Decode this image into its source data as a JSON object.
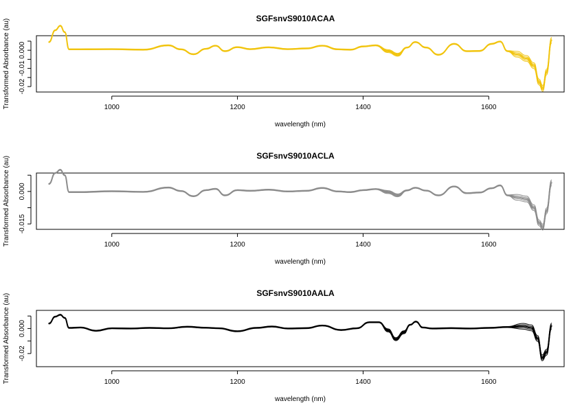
{
  "chart_data": [
    {
      "type": "line",
      "title": "SGFsnvS9010ACAA",
      "xlabel": "wavelength (nm)",
      "ylabel": "Transformed Absorbance (au)",
      "xlim": [
        880,
        1720
      ],
      "ylim": [
        -0.023,
        0.008
      ],
      "xticks": [
        1000,
        1200,
        1400,
        1600
      ],
      "yticks": [
        -0.02,
        -0.01,
        0.0
      ],
      "color": "#f1c40f",
      "grid": false,
      "series": [
        {
          "x": [
            900,
            910,
            918,
            925,
            932,
            950,
            1000,
            1050,
            1090,
            1110,
            1130,
            1150,
            1165,
            1180,
            1200,
            1220,
            1250,
            1280,
            1310,
            1335,
            1360,
            1380,
            1400,
            1420,
            1440,
            1455,
            1470,
            1483,
            1500,
            1520,
            1545,
            1565,
            1585,
            1605,
            1618,
            1630,
            1645,
            1660,
            1672,
            1680,
            1686,
            1692,
            1700
          ],
          "y": [
            0.0045,
            0.011,
            0.0135,
            0.01,
            0.0005,
            0.0005,
            0.0006,
            0.0003,
            0.0027,
            0.0005,
            -0.0022,
            0.0008,
            0.0025,
            -0.0005,
            0.0017,
            0.0006,
            0.0016,
            0.0006,
            0.001,
            0.0025,
            0.0005,
            0.0003,
            0.0021,
            0.0027,
            -0.0005,
            -0.0025,
            0.0015,
            0.0045,
            0.0015,
            -0.0025,
            0.0035,
            -0.0005,
            -0.0004,
            0.0035,
            0.0048,
            -0.0005,
            -0.0022,
            -0.0045,
            -0.0085,
            -0.0175,
            -0.021,
            -0.012,
            0.0055
          ]
        }
      ]
    },
    {
      "type": "line",
      "title": "SGFsnvS9010ACLA",
      "xlabel": "wavelength (nm)",
      "ylabel": "Transformed Absorbance (au)",
      "xlim": [
        880,
        1720
      ],
      "ylim": [
        -0.0175,
        0.0085
      ],
      "xticks": [
        1000,
        1200,
        1400,
        1600
      ],
      "yticks": [
        -0.015,
        0.0
      ],
      "color": "#8c8c8c",
      "grid": false,
      "series": [
        {
          "x": [
            900,
            910,
            918,
            925,
            932,
            950,
            1000,
            1050,
            1090,
            1110,
            1130,
            1150,
            1165,
            1180,
            1200,
            1220,
            1250,
            1280,
            1310,
            1335,
            1360,
            1380,
            1400,
            1420,
            1440,
            1455,
            1470,
            1483,
            1500,
            1520,
            1545,
            1565,
            1585,
            1605,
            1618,
            1630,
            1645,
            1660,
            1672,
            1680,
            1686,
            1692,
            1700
          ],
          "y": [
            0.0035,
            0.0085,
            0.01,
            0.0075,
            -0.0003,
            -0.0003,
            0.0001,
            -0.0002,
            0.0018,
            0.0002,
            -0.0022,
            0.0006,
            0.0012,
            -0.0018,
            0.0006,
            0.0003,
            0.0008,
            0.0,
            0.0003,
            0.0016,
            0.0,
            -0.0003,
            0.0006,
            0.0011,
            -0.0003,
            -0.0018,
            0.0005,
            0.0017,
            0.0004,
            -0.0018,
            0.0023,
            -0.0008,
            -0.0005,
            0.0015,
            0.0028,
            -0.0018,
            -0.0027,
            -0.0035,
            -0.0075,
            -0.0145,
            -0.0165,
            -0.009,
            0.004
          ]
        }
      ]
    },
    {
      "type": "line",
      "title": "SGFsnvS9010AALA",
      "xlabel": "wavelength (nm)",
      "ylabel": "Transformed Absorbance (au)",
      "xlim": [
        880,
        1720
      ],
      "ylim": [
        -0.0305,
        0.0145
      ],
      "xticks": [
        1000,
        1200,
        1400,
        1600
      ],
      "yticks": [
        -0.02,
        0.0
      ],
      "color": "#000000",
      "grid": false,
      "series": [
        {
          "x": [
            900,
            910,
            918,
            925,
            932,
            950,
            975,
            1000,
            1030,
            1060,
            1090,
            1120,
            1150,
            1170,
            1200,
            1230,
            1255,
            1280,
            1310,
            1335,
            1365,
            1390,
            1410,
            1425,
            1440,
            1452,
            1465,
            1475,
            1484,
            1495,
            1510,
            1540,
            1570,
            1600,
            1630,
            1655,
            1668,
            1678,
            1685,
            1692,
            1700
          ],
          "y": [
            0.004,
            0.0095,
            0.011,
            0.0085,
            0.0005,
            0.0008,
            -0.0018,
            0.0002,
            0.0,
            0.0005,
            0.0002,
            0.0014,
            0.0006,
            0.0002,
            -0.0022,
            0.0005,
            0.0016,
            0.0,
            0.0003,
            0.0024,
            -0.0012,
            0.0002,
            0.005,
            0.005,
            -0.0015,
            -0.0085,
            -0.003,
            0.003,
            0.0055,
            0.0008,
            0.0,
            0.0003,
            0.0,
            0.0005,
            0.0012,
            0.0018,
            0.0005,
            -0.008,
            -0.0235,
            -0.019,
            0.002
          ]
        }
      ]
    }
  ]
}
